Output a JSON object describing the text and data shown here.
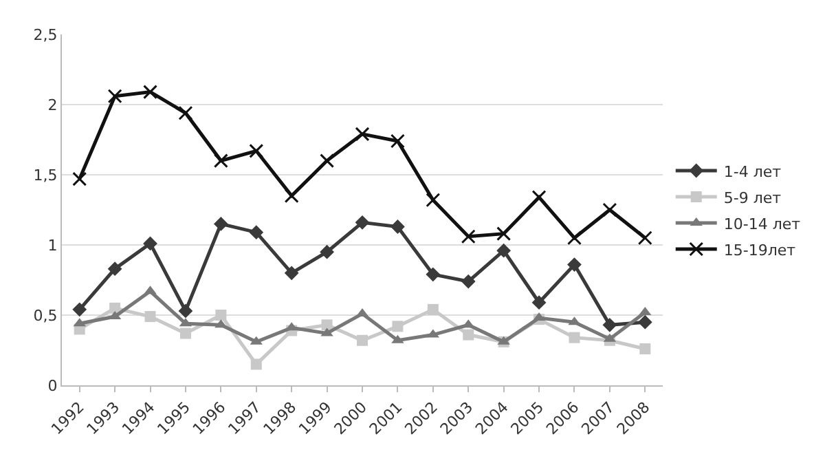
{
  "chart_data": {
    "type": "line",
    "categories": [
      "1992",
      "1993",
      "1994",
      "1995",
      "1996",
      "1997",
      "1998",
      "1999",
      "2000",
      "2001",
      "2002",
      "2003",
      "2004",
      "2005",
      "2006",
      "2007",
      "2008"
    ],
    "series": [
      {
        "name": "1-4 лет",
        "color": "#3a3a3a",
        "marker": "diamond",
        "values": [
          0.54,
          0.83,
          1.01,
          0.53,
          1.15,
          1.09,
          0.8,
          0.95,
          1.16,
          1.13,
          0.79,
          0.74,
          0.96,
          0.59,
          0.86,
          0.43,
          0.45
        ]
      },
      {
        "name": "5-9 лет",
        "color": "#c8c8c8",
        "marker": "square",
        "values": [
          0.4,
          0.55,
          0.49,
          0.37,
          0.5,
          0.15,
          0.39,
          0.43,
          0.32,
          0.42,
          0.54,
          0.36,
          0.31,
          0.47,
          0.34,
          0.32,
          0.26
        ]
      },
      {
        "name": "10-14 лет",
        "color": "#787878",
        "marker": "triangle",
        "values": [
          0.44,
          0.49,
          0.67,
          0.44,
          0.43,
          0.31,
          0.41,
          0.37,
          0.51,
          0.32,
          0.36,
          0.43,
          0.31,
          0.48,
          0.45,
          0.33,
          0.52
        ]
      },
      {
        "name": "15-19лет",
        "color": "#111111",
        "marker": "cross",
        "values": [
          1.47,
          2.06,
          2.09,
          1.94,
          1.6,
          1.67,
          1.35,
          1.6,
          1.79,
          1.74,
          1.32,
          1.06,
          1.08,
          1.34,
          1.05,
          1.25,
          1.05
        ]
      }
    ],
    "ylim": [
      0,
      2.5
    ],
    "yticks": [
      0,
      {
        "value": 0.5,
        "label": "0,5"
      },
      1,
      {
        "value": 1.5,
        "label": "1,5"
      },
      2,
      {
        "value": 2.5,
        "label": "2,5"
      }
    ],
    "grid": "y",
    "legend": "right",
    "line_style": "solid"
  }
}
